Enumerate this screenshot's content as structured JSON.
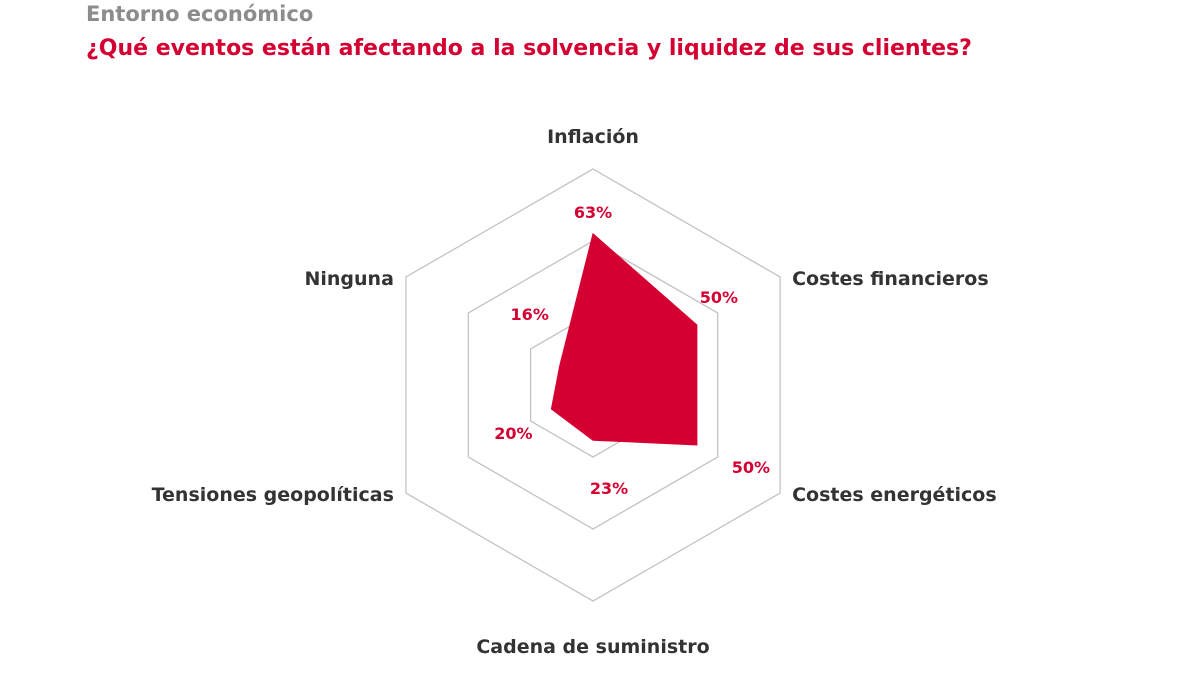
{
  "header": {
    "subtitle": "Entorno económico",
    "title": "¿Qué eventos están afectando a la solvencia y liquidez de sus clientes?"
  },
  "colors": {
    "accent": "#d50032",
    "subtitle": "#8c8c8c",
    "grid": "#bfbfbf",
    "axis_text": "#333333"
  },
  "chart_data": {
    "type": "radar",
    "title": "¿Qué eventos están afectando a la solvencia y liquidez de sus clientes?",
    "categories": [
      "Inflación",
      "Costes financieros",
      "Costes energéticos",
      "Cadena de suministro",
      "Tensiones geopolíticas",
      "Ninguna"
    ],
    "values": [
      63,
      50,
      50,
      23,
      20,
      16
    ],
    "value_labels": [
      "63%",
      "50%",
      "50%",
      "23%",
      "20%",
      "16%"
    ],
    "unit": "%",
    "range": [
      0,
      90
    ],
    "grid_levels": [
      30,
      60,
      90
    ],
    "legend": "none"
  }
}
